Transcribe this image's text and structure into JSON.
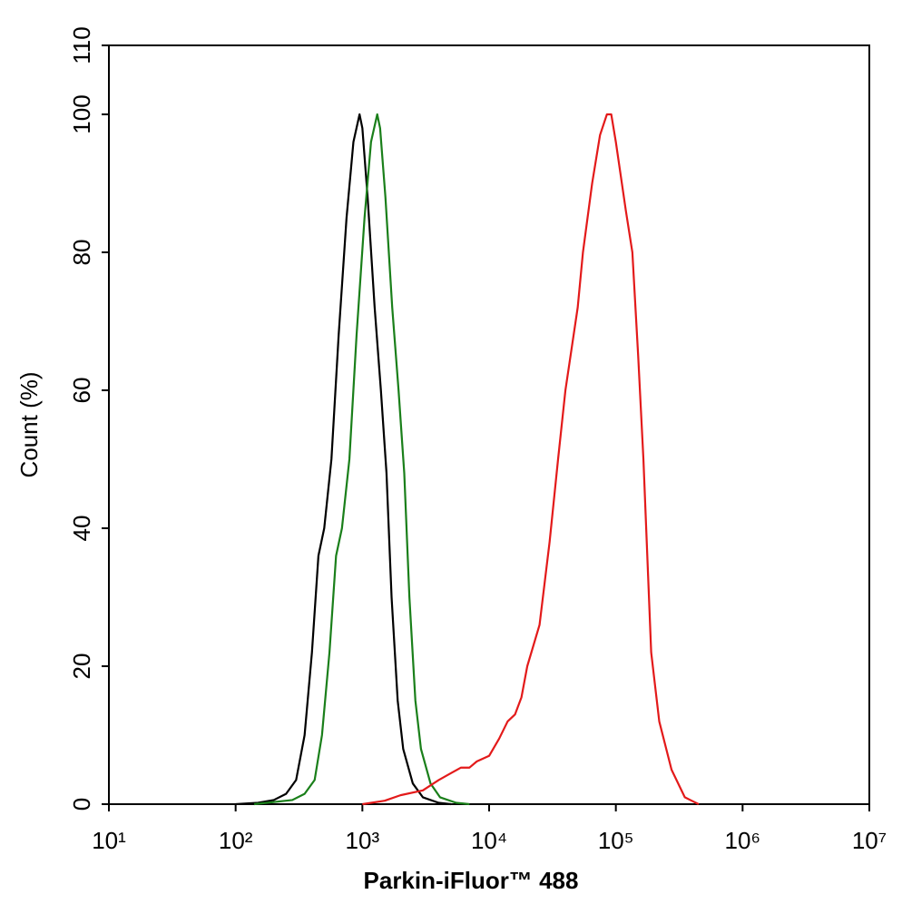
{
  "chart_data": {
    "type": "line",
    "x_label": "Parkin-iFluor™ 488",
    "y_label": "Count  (%)",
    "xlim": [
      10,
      10000000
    ],
    "log_x": true,
    "xticks": [
      {
        "value": 10,
        "label": "10¹"
      },
      {
        "value": 100,
        "label": "10²"
      },
      {
        "value": 1000,
        "label": "10³"
      },
      {
        "value": 10000,
        "label": "10⁴"
      },
      {
        "value": 100000,
        "label": "10⁵"
      },
      {
        "value": 1000000,
        "label": "10⁶"
      },
      {
        "value": 10000000,
        "label": "10⁷"
      }
    ],
    "ylim": [
      0,
      110
    ],
    "yticks": [
      0,
      20,
      40,
      60,
      80,
      100,
      110
    ],
    "series": [
      {
        "color": "#000000",
        "x": [
          100,
          150,
          200,
          250,
          300,
          350,
          400,
          450,
          500,
          570,
          650,
          750,
          850,
          950,
          1000,
          1100,
          1250,
          1400,
          1550,
          1700,
          1900,
          2100,
          2500,
          3000,
          4000,
          5000
        ],
        "values": [
          0,
          0.2,
          0.6,
          1.5,
          3.5,
          10,
          22,
          36,
          40,
          50,
          68,
          85,
          96,
          100,
          98,
          88,
          72,
          60,
          48,
          30,
          15,
          8,
          3,
          1,
          0.2,
          0
        ]
      },
      {
        "color": "#1a7f1a",
        "x": [
          140,
          280,
          350,
          420,
          480,
          550,
          620,
          690,
          790,
          900,
          1040,
          1170,
          1310,
          1380,
          1520,
          1720,
          1930,
          2140,
          2350,
          2620,
          2900,
          3450,
          4100,
          5500,
          7000
        ],
        "values": [
          0,
          0.6,
          1.5,
          3.5,
          10,
          22,
          36,
          40,
          50,
          68,
          85,
          96,
          100,
          98,
          88,
          72,
          60,
          48,
          30,
          15,
          8,
          3,
          1,
          0.2,
          0
        ]
      },
      {
        "color": "#e31a1a",
        "x": [
          1000,
          1500,
          2000,
          3000,
          4000,
          5000,
          6000,
          7000,
          8000,
          10000,
          12000,
          14000,
          16000,
          18000,
          20000,
          25000,
          30000,
          35000,
          40000,
          50000,
          55000,
          65000,
          75000,
          85000,
          92000,
          100000,
          120000,
          135000,
          150000,
          165000,
          190000,
          220000,
          275000,
          350000,
          450000
        ],
        "values": [
          0,
          0.5,
          1.3,
          2,
          3.5,
          4.5,
          5.3,
          5.3,
          6.2,
          7,
          9.5,
          12,
          13,
          15.5,
          20,
          26,
          38,
          50,
          60,
          72,
          80,
          90,
          97,
          100,
          100,
          96,
          86,
          80,
          65,
          50,
          22,
          12,
          5,
          1,
          0
        ]
      }
    ]
  }
}
